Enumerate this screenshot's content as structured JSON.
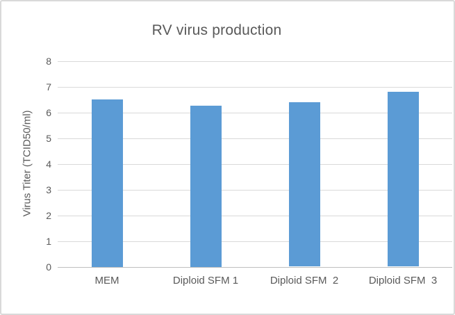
{
  "window": {
    "background_color": "#ffffff",
    "border_color": "#d9d9d9"
  },
  "chart_data": {
    "type": "bar",
    "title": "RV virus production",
    "categories": [
      "MEM",
      "Diploid SFM 1",
      "Diploid SFM  2",
      "Diploid SFM  3"
    ],
    "values": [
      6.5,
      6.25,
      6.4,
      6.8
    ],
    "xlabel": "",
    "ylabel": "Virus Titer (TCID50/ml)",
    "ylim": [
      0,
      8
    ],
    "yticks": [
      0,
      1,
      2,
      3,
      4,
      5,
      6,
      7,
      8
    ],
    "grid": true,
    "legend_position": "none",
    "bar_color": "#5b9bd5",
    "gridline_color": "#d9d9d9",
    "axis_line_color": "#bfbfbf",
    "text_color": "#595959"
  }
}
